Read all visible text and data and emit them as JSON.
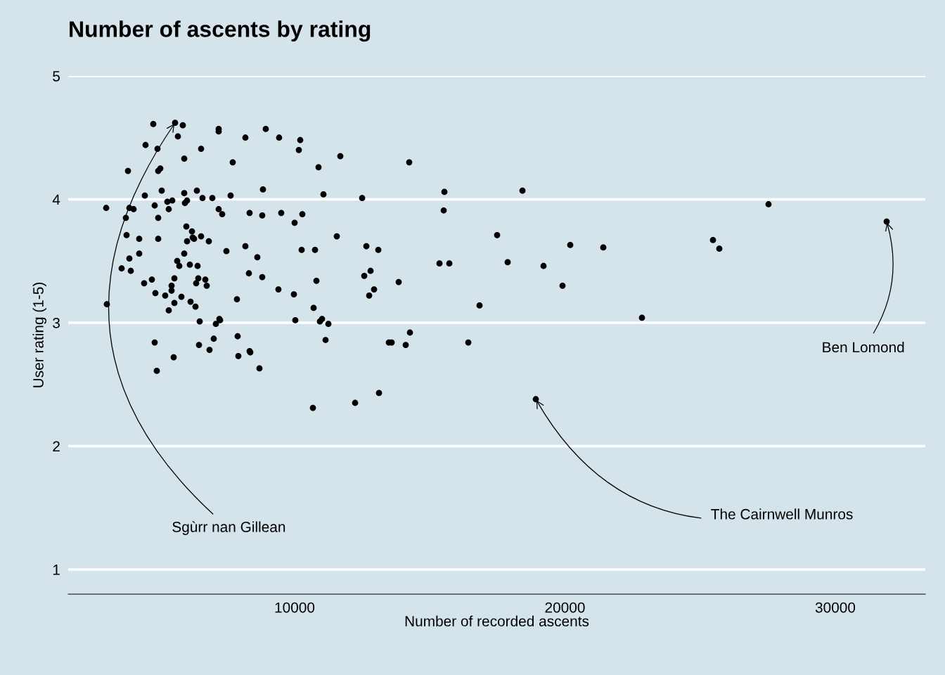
{
  "chart_data": {
    "type": "scatter",
    "title": "Number of ascents by rating",
    "xlabel": "Number of recorded ascents",
    "ylabel": "User rating (1-5)",
    "x": [
      3030,
      3055,
      3602,
      3758,
      3784,
      3836,
      3888,
      3888,
      3940,
      4044,
      4252,
      4252,
      4434,
      4486,
      4460,
      4720,
      4772,
      4824,
      4824,
      4850,
      4902,
      4928,
      4954,
      4954,
      4954,
      5032,
      5084,
      5214,
      5292,
      5344,
      5344,
      5449,
      5449,
      5475,
      5527,
      5553,
      5553,
      5579,
      5657,
      5683,
      5735,
      5813,
      5865,
      5917,
      5917,
      5943,
      5917,
      5995,
      6021,
      6021,
      6151,
      6125,
      6203,
      6229,
      6281,
      6333,
      6359,
      6385,
      6411,
      6437,
      6463,
      6489,
      6541,
      6541,
      6593,
      6697,
      6749,
      6827,
      6853,
      6957,
      7009,
      7087,
      7191,
      7191,
      7191,
      7217,
      7243,
      7321,
      7477,
      7633,
      7711,
      7867,
      7893,
      7919,
      8179,
      8179,
      8309,
      8335,
      8335,
      8361,
      8621,
      8699,
      8803,
      8829,
      8803,
      8933,
      9401,
      9427,
      9505,
      10000,
      9974,
      10026,
      10156,
      10208,
      10286,
      10260,
      10703,
      10677,
      10755,
      10807,
      10885,
      10937,
      11015,
      11067,
      11145,
      11249,
      11561,
      11691,
      12238,
      12498,
      12576,
      12654,
      12758,
      12810,
      12940,
      13096,
      13122,
      13486,
      13590,
      13850,
      14110,
      14240,
      14266,
      15359,
      15541,
      15515,
      15723,
      16425,
      16841,
      17491,
      17881,
      18428,
      18922,
      19208,
      19910,
      20196,
      21418,
      22849,
      25476,
      25710,
      27530,
      31900
    ],
    "values": [
      3.93,
      3.15,
      3.44,
      3.85,
      3.71,
      4.23,
      3.52,
      3.93,
      3.42,
      3.92,
      3.68,
      3.56,
      3.32,
      4.44,
      4.03,
      3.35,
      4.61,
      3.95,
      2.84,
      3.24,
      2.61,
      4.41,
      3.85,
      3.68,
      4.23,
      4.25,
      4.07,
      3.22,
      3.98,
      3.92,
      3.1,
      3.3,
      3.26,
      3.99,
      2.72,
      3.36,
      3.16,
      4.62,
      3.5,
      4.51,
      3.46,
      3.21,
      4.6,
      4.33,
      3.56,
      3.97,
      4.05,
      3.78,
      3.66,
      3.99,
      3.17,
      3.47,
      3.74,
      3.69,
      3.68,
      3.13,
      3.32,
      4.07,
      3.46,
      3.36,
      2.82,
      3.01,
      4.41,
      3.7,
      4.01,
      3.35,
      3.3,
      3.66,
      2.78,
      4.01,
      2.87,
      2.99,
      4.57,
      4.55,
      3.92,
      3.03,
      3.02,
      3.88,
      3.58,
      4.03,
      4.3,
      3.19,
      2.89,
      2.73,
      4.5,
      3.62,
      3.4,
      3.89,
      2.77,
      2.76,
      3.53,
      2.63,
      3.37,
      4.08,
      3.87,
      4.57,
      3.27,
      4.5,
      3.89,
      3.81,
      3.23,
      3.02,
      4.4,
      4.48,
      3.88,
      3.59,
      3.12,
      2.31,
      3.59,
      3.34,
      4.26,
      3.01,
      3.03,
      4.04,
      2.86,
      2.99,
      3.7,
      4.35,
      2.35,
      4.01,
      3.38,
      3.62,
      3.22,
      3.42,
      3.27,
      3.59,
      2.43,
      2.84,
      2.84,
      3.33,
      2.82,
      4.3,
      2.92,
      3.48,
      4.06,
      3.91,
      3.48,
      2.84,
      3.14,
      3.71,
      3.49,
      4.07,
      2.38,
      3.46,
      3.3,
      3.63,
      3.61,
      3.04,
      3.67,
      3.6,
      3.96,
      3.82
    ],
    "color": "#000000",
    "marker": "circle",
    "xlim": [
      1625,
      33330
    ],
    "ylim": [
      0.8,
      5
    ],
    "xticks": [
      10000,
      20000,
      30000
    ],
    "yticks": [
      1,
      2,
      3,
      4,
      5
    ],
    "grid": "y",
    "annotations": [
      {
        "text": "Sgùrr nan Gillean",
        "x": 5579,
        "y": 4.62
      },
      {
        "text": "The Cairnwell Munros",
        "x": 18922,
        "y": 2.38
      },
      {
        "text": "Ben Lomond",
        "x": 31900,
        "y": 3.82
      }
    ]
  }
}
